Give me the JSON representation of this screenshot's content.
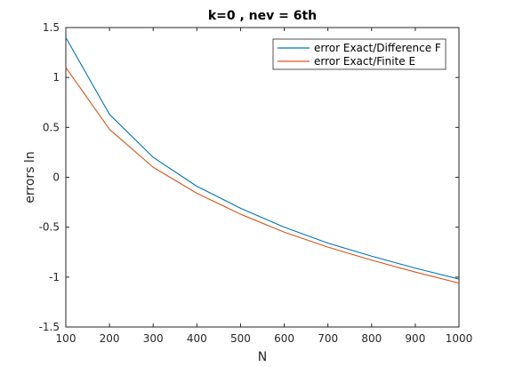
{
  "chart_data": {
    "type": "line",
    "title": "k=0 , nev = 6th",
    "xlabel": "N",
    "ylabel": "errors ln",
    "xlim": [
      100,
      1000
    ],
    "ylim": [
      -1.5,
      1.5
    ],
    "xticks": [
      100,
      200,
      300,
      400,
      500,
      600,
      700,
      800,
      900,
      1000
    ],
    "yticks": [
      -1.5,
      -1,
      -0.5,
      0,
      0.5,
      1,
      1.5
    ],
    "ytick_labels": [
      "-1.5",
      "-1",
      "-0.5",
      "0",
      "0.5",
      "1",
      "1.5"
    ],
    "grid": false,
    "legend_position": "top-right",
    "x": [
      100,
      200,
      300,
      400,
      500,
      600,
      700,
      800,
      900,
      1000
    ],
    "series": [
      {
        "name": "error Exact/Difference F",
        "color": "#0072BD",
        "values": [
          1.4,
          0.63,
          0.2,
          -0.09,
          -0.31,
          -0.5,
          -0.66,
          -0.79,
          -0.91,
          -1.02
        ]
      },
      {
        "name": "error Exact/Finite E",
        "color": "#D95319",
        "values": [
          1.1,
          0.48,
          0.1,
          -0.16,
          -0.37,
          -0.55,
          -0.7,
          -0.83,
          -0.95,
          -1.06
        ]
      }
    ]
  }
}
